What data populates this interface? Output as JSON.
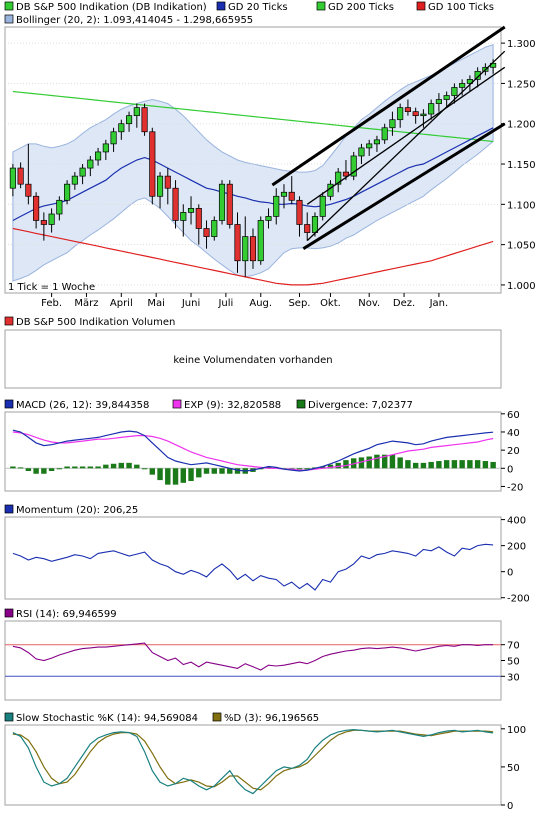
{
  "colors": {
    "candle_up": "#33cc33",
    "candle_down": "#e03030",
    "gd20": "#1a2fb0",
    "gd200": "#33cc33",
    "gd100": "#e02020",
    "bollinger_fill": "#dde7f6",
    "bollinger_line": "#9ab4de",
    "trend": "#000000",
    "macd": "#1a2fb0",
    "exp": "#ee33ee",
    "divergence": "#1a7a1a",
    "momentum": "#1a2fb0",
    "rsi": "#880088",
    "rsi_upper": "#e06060",
    "rsi_lower": "#4050c0",
    "stoch_k": "#1a8080",
    "stoch_d": "#807010"
  },
  "main": {
    "legend": [
      {
        "label": "DB S&P 500 Indikation (DB Indikation)",
        "color": "#33cc33"
      },
      {
        "label": "GD 20 Ticks",
        "color": "#1a2fb0"
      },
      {
        "label": "GD 200 Ticks",
        "color": "#33cc33"
      },
      {
        "label": "GD 100 Ticks",
        "color": "#e02020"
      }
    ],
    "legend2": {
      "label": "Bollinger (20, 2): 1.093,414045 - 1.298,665955",
      "color": "#9ab4de"
    },
    "tick_note": "1 Tick = 1 Woche"
  },
  "chart_data": [
    {
      "type": "candlestick",
      "title": "DB S&P 500 Indikation (DB Indikation)",
      "yticks": [
        "1.000",
        "1.050",
        "1.100",
        "1.150",
        "1.200",
        "1.250",
        "1.300"
      ],
      "ylim": [
        990,
        1320
      ],
      "months": [
        {
          "label": "Feb.",
          "x": 5
        },
        {
          "label": "März",
          "x": 9.5
        },
        {
          "label": "April",
          "x": 14
        },
        {
          "label": "Mai",
          "x": 18.5
        },
        {
          "label": "Juni",
          "x": 23
        },
        {
          "label": "Juli",
          "x": 27.5
        },
        {
          "label": "Aug.",
          "x": 32
        },
        {
          "label": "Sep.",
          "x": 37
        },
        {
          "label": "Okt.",
          "x": 41
        },
        {
          "label": "Nov.",
          "x": 46
        },
        {
          "label": "Dez.",
          "x": 50.5
        },
        {
          "label": "Jan.",
          "x": 55
        }
      ],
      "candles": [
        [
          1120,
          1150,
          1110,
          1145
        ],
        [
          1145,
          1152,
          1120,
          1125
        ],
        [
          1125,
          1175,
          1100,
          1110
        ],
        [
          1110,
          1115,
          1070,
          1080
        ],
        [
          1080,
          1090,
          1055,
          1075
        ],
        [
          1075,
          1095,
          1065,
          1088
        ],
        [
          1088,
          1110,
          1080,
          1105
        ],
        [
          1105,
          1130,
          1100,
          1125
        ],
        [
          1125,
          1140,
          1118,
          1135
        ],
        [
          1135,
          1150,
          1125,
          1145
        ],
        [
          1145,
          1160,
          1135,
          1155
        ],
        [
          1155,
          1170,
          1148,
          1165
        ],
        [
          1165,
          1180,
          1155,
          1175
        ],
        [
          1175,
          1195,
          1165,
          1190
        ],
        [
          1190,
          1205,
          1180,
          1200
        ],
        [
          1200,
          1215,
          1190,
          1210
        ],
        [
          1210,
          1225,
          1195,
          1220
        ],
        [
          1220,
          1225,
          1185,
          1190
        ],
        [
          1190,
          1195,
          1100,
          1110
        ],
        [
          1110,
          1140,
          1095,
          1135
        ],
        [
          1135,
          1145,
          1100,
          1120
        ],
        [
          1120,
          1130,
          1070,
          1080
        ],
        [
          1080,
          1100,
          1060,
          1090
        ],
        [
          1090,
          1110,
          1075,
          1095
        ],
        [
          1095,
          1100,
          1050,
          1070
        ],
        [
          1070,
          1080,
          1045,
          1060
        ],
        [
          1060,
          1085,
          1055,
          1080
        ],
        [
          1080,
          1130,
          1075,
          1125
        ],
        [
          1125,
          1130,
          1070,
          1075
        ],
        [
          1075,
          1090,
          1015,
          1030
        ],
        [
          1030,
          1085,
          1010,
          1060
        ],
        [
          1060,
          1070,
          1020,
          1030
        ],
        [
          1030,
          1085,
          1025,
          1080
        ],
        [
          1080,
          1095,
          1070,
          1085
        ],
        [
          1085,
          1120,
          1075,
          1110
        ],
        [
          1110,
          1125,
          1095,
          1115
        ],
        [
          1115,
          1135,
          1100,
          1105
        ],
        [
          1105,
          1110,
          1060,
          1075
        ],
        [
          1075,
          1090,
          1055,
          1065
        ],
        [
          1065,
          1090,
          1060,
          1085
        ],
        [
          1085,
          1115,
          1080,
          1110
        ],
        [
          1110,
          1130,
          1105,
          1125
        ],
        [
          1125,
          1145,
          1115,
          1140
        ],
        [
          1140,
          1155,
          1130,
          1135
        ],
        [
          1135,
          1165,
          1130,
          1160
        ],
        [
          1160,
          1175,
          1150,
          1170
        ],
        [
          1170,
          1180,
          1160,
          1175
        ],
        [
          1175,
          1185,
          1165,
          1180
        ],
        [
          1180,
          1200,
          1175,
          1195
        ],
        [
          1195,
          1215,
          1185,
          1205
        ],
        [
          1205,
          1225,
          1195,
          1220
        ],
        [
          1220,
          1230,
          1210,
          1215
        ],
        [
          1215,
          1220,
          1200,
          1210
        ],
        [
          1210,
          1218,
          1195,
          1212
        ],
        [
          1212,
          1230,
          1205,
          1225
        ],
        [
          1225,
          1238,
          1215,
          1230
        ],
        [
          1230,
          1240,
          1220,
          1235
        ],
        [
          1235,
          1250,
          1225,
          1245
        ],
        [
          1245,
          1255,
          1235,
          1250
        ],
        [
          1250,
          1260,
          1240,
          1255
        ],
        [
          1255,
          1270,
          1245,
          1265
        ],
        [
          1265,
          1275,
          1260,
          1270
        ],
        [
          1270,
          1280,
          1262,
          1275
        ]
      ],
      "gd20": [
        1080,
        1085,
        1090,
        1095,
        1098,
        1100,
        1102,
        1105,
        1110,
        1115,
        1120,
        1125,
        1130,
        1138,
        1145,
        1150,
        1155,
        1158,
        1155,
        1150,
        1145,
        1140,
        1135,
        1130,
        1125,
        1120,
        1118,
        1115,
        1113,
        1110,
        1108,
        1105,
        1103,
        1102,
        1100,
        1100,
        1101,
        1100,
        1098,
        1097,
        1098,
        1100,
        1103,
        1106,
        1110,
        1115,
        1120,
        1125,
        1130,
        1135,
        1140,
        1145,
        1148,
        1150,
        1155,
        1160,
        1165,
        1170,
        1175,
        1180,
        1185,
        1190,
        1195
      ],
      "gd200": [
        1240,
        1239,
        1238,
        1237,
        1236,
        1235,
        1234,
        1233,
        1232,
        1231,
        1230,
        1229,
        1228,
        1227,
        1226,
        1225,
        1224,
        1223,
        1222,
        1221,
        1220,
        1219,
        1218,
        1217,
        1216,
        1215,
        1214,
        1213,
        1212,
        1211,
        1210,
        1209,
        1208,
        1207,
        1206,
        1205,
        1204,
        1203,
        1202,
        1201,
        1200,
        1199,
        1198,
        1197,
        1196,
        1195,
        1194,
        1193,
        1192,
        1191,
        1190,
        1189,
        1188,
        1187,
        1186,
        1185,
        1184,
        1183,
        1182,
        1181,
        1180,
        1179,
        1178
      ],
      "gd100": [
        1070,
        1068,
        1066,
        1064,
        1062,
        1060,
        1058,
        1056,
        1054,
        1052,
        1050,
        1048,
        1046,
        1044,
        1042,
        1040,
        1038,
        1036,
        1034,
        1032,
        1030,
        1028,
        1026,
        1024,
        1022,
        1020,
        1018,
        1016,
        1014,
        1012,
        1010,
        1008,
        1006,
        1004,
        1002,
        1001,
        1000,
        1000,
        1000,
        1001,
        1002,
        1004,
        1006,
        1008,
        1010,
        1012,
        1014,
        1016,
        1018,
        1020,
        1022,
        1024,
        1026,
        1028,
        1030,
        1033,
        1036,
        1039,
        1042,
        1045,
        1048,
        1051,
        1054
      ],
      "boll_upper": [
        1165,
        1170,
        1175,
        1175,
        1172,
        1170,
        1172,
        1175,
        1180,
        1188,
        1195,
        1200,
        1205,
        1212,
        1218,
        1222,
        1225,
        1228,
        1230,
        1228,
        1225,
        1218,
        1210,
        1200,
        1190,
        1180,
        1172,
        1165,
        1160,
        1155,
        1152,
        1150,
        1148,
        1146,
        1144,
        1142,
        1141,
        1140,
        1140,
        1142,
        1148,
        1160,
        1172,
        1185,
        1195,
        1205,
        1212,
        1220,
        1228,
        1235,
        1242,
        1248,
        1252,
        1256,
        1260,
        1265,
        1270,
        1275,
        1280,
        1285,
        1290,
        1295,
        1298
      ],
      "boll_lower": [
        1005,
        1008,
        1012,
        1018,
        1025,
        1030,
        1035,
        1040,
        1048,
        1055,
        1062,
        1068,
        1075,
        1082,
        1090,
        1098,
        1105,
        1108,
        1102,
        1095,
        1085,
        1075,
        1065,
        1055,
        1048,
        1040,
        1032,
        1025,
        1018,
        1012,
        1010,
        1012,
        1015,
        1020,
        1030,
        1040,
        1045,
        1046,
        1046,
        1045,
        1046,
        1048,
        1052,
        1058,
        1062,
        1068,
        1074,
        1080,
        1085,
        1090,
        1095,
        1100,
        1105,
        1110,
        1118,
        1125,
        1132,
        1140,
        1148,
        1155,
        1162,
        1170,
        1178
      ],
      "trendlines": [
        [
          [
            33.5,
            1124
          ],
          [
            63.5,
            1320
          ]
        ],
        [
          [
            37.5,
            1045
          ],
          [
            63.5,
            1200
          ]
        ],
        [
          [
            38,
            1100
          ],
          [
            63.5,
            1270
          ]
        ],
        [
          [
            38,
            1055
          ],
          [
            63.5,
            1290
          ]
        ]
      ]
    },
    {
      "type": "text",
      "title": "DB S&P 500 Indikation Volumen",
      "message": "keine Volumendaten vorhanden"
    },
    {
      "type": "line+bar",
      "legend": [
        {
          "label": "MACD (26, 12): 39,844358",
          "color": "#1a2fb0"
        },
        {
          "label": "EXP (9): 32,820588",
          "color": "#ee33ee"
        },
        {
          "label": "Divergence: 7,02377",
          "color": "#1a7a1a"
        }
      ],
      "yticks": [
        "60",
        "40",
        "20",
        "0",
        "-20"
      ],
      "ylim": [
        -25,
        62
      ],
      "macd": [
        42,
        40,
        34,
        28,
        25,
        26,
        28,
        30,
        31,
        32,
        33,
        34,
        36,
        38,
        40,
        41,
        40,
        36,
        28,
        20,
        12,
        8,
        6,
        4,
        5,
        6,
        4,
        2,
        0,
        -2,
        -3,
        -2,
        0,
        2,
        1,
        -1,
        -2,
        -3,
        -2,
        0,
        2,
        5,
        8,
        12,
        16,
        19,
        22,
        26,
        28,
        30,
        29,
        28,
        26,
        27,
        30,
        32,
        34,
        35,
        36,
        37,
        38,
        39,
        39.8
      ],
      "exp": [
        40,
        39,
        37,
        34,
        31,
        29,
        28,
        28,
        29,
        30,
        31,
        32,
        32,
        33,
        34,
        35,
        36,
        36,
        35,
        33,
        30,
        26,
        22,
        18,
        15,
        12,
        10,
        8,
        6,
        4,
        3,
        2,
        1,
        0,
        0,
        -1,
        -1,
        -2,
        -2,
        -1,
        0,
        1,
        2,
        3,
        5,
        7,
        9,
        11,
        13,
        15,
        17,
        19,
        20,
        21,
        23,
        24,
        25,
        26,
        27,
        28,
        29,
        31,
        32.8
      ],
      "divergence": [
        2,
        1,
        -3,
        -6,
        -6,
        -3,
        0,
        2,
        2,
        2,
        2,
        2,
        4,
        5,
        6,
        6,
        4,
        0,
        -7,
        -13,
        -18,
        -18,
        -16,
        -14,
        -10,
        -6,
        -6,
        -6,
        -6,
        -6,
        -6,
        -4,
        -1,
        2,
        1,
        0,
        -1,
        -1,
        0,
        1,
        2,
        4,
        6,
        9,
        11,
        12,
        13,
        15,
        15,
        15,
        12,
        9,
        6,
        6,
        7,
        8,
        9,
        9,
        9,
        9,
        9,
        8,
        7
      ]
    },
    {
      "type": "line",
      "legend": [
        {
          "label": "Momentum (20): 206,25",
          "color": "#1a2fb0"
        }
      ],
      "yticks": [
        "400",
        "200",
        "0",
        "-200"
      ],
      "ylim": [
        -210,
        420
      ],
      "values": [
        140,
        120,
        90,
        110,
        100,
        80,
        95,
        110,
        130,
        120,
        100,
        140,
        150,
        160,
        140,
        120,
        135,
        150,
        90,
        60,
        40,
        0,
        -20,
        10,
        -10,
        -40,
        20,
        60,
        10,
        -60,
        -20,
        -70,
        -30,
        -50,
        -60,
        -110,
        -80,
        -130,
        -90,
        -140,
        -60,
        -80,
        0,
        20,
        60,
        120,
        100,
        130,
        140,
        160,
        150,
        140,
        120,
        170,
        160,
        190,
        150,
        120,
        180,
        170,
        200,
        210,
        206
      ]
    },
    {
      "type": "line",
      "legend": [
        {
          "label": "RSI (14): 69,946599",
          "color": "#880088"
        }
      ],
      "yticks": [
        "70",
        "50",
        "30"
      ],
      "ylim": [
        0,
        100
      ],
      "hlines": [
        70,
        30
      ],
      "values": [
        68,
        66,
        60,
        52,
        50,
        53,
        57,
        60,
        63,
        65,
        66,
        67,
        67,
        68,
        69,
        70,
        71,
        72,
        60,
        55,
        50,
        53,
        45,
        48,
        42,
        48,
        46,
        44,
        42,
        40,
        46,
        42,
        38,
        44,
        43,
        44,
        46,
        48,
        46,
        50,
        55,
        58,
        60,
        62,
        63,
        65,
        66,
        65,
        66,
        67,
        66,
        64,
        62,
        64,
        66,
        68,
        69,
        68,
        70,
        70,
        69,
        70,
        70
      ]
    },
    {
      "type": "line",
      "legend": [
        {
          "label": "Slow Stochastic %K (14): 94,569084",
          "color": "#1a8080"
        },
        {
          "label": "%D (3): 96,196565",
          "color": "#807010"
        }
      ],
      "yticks": [
        "100",
        "50",
        "0"
      ],
      "ylim": [
        0,
        105
      ],
      "k": [
        95,
        90,
        75,
        50,
        30,
        25,
        28,
        35,
        50,
        65,
        80,
        88,
        92,
        95,
        96,
        95,
        90,
        70,
        45,
        30,
        25,
        28,
        35,
        32,
        25,
        20,
        25,
        35,
        45,
        30,
        20,
        15,
        25,
        35,
        45,
        50,
        48,
        52,
        60,
        75,
        85,
        92,
        96,
        98,
        99,
        98,
        97,
        96,
        97,
        98,
        96,
        94,
        92,
        90,
        92,
        95,
        97,
        98,
        96,
        97,
        98,
        96,
        94.6
      ],
      "d": [
        93,
        92,
        85,
        70,
        50,
        35,
        28,
        30,
        40,
        55,
        70,
        82,
        89,
        93,
        95,
        95,
        93,
        84,
        68,
        50,
        35,
        28,
        30,
        33,
        30,
        25,
        24,
        30,
        38,
        38,
        30,
        22,
        20,
        28,
        38,
        45,
        48,
        50,
        55,
        65,
        75,
        85,
        92,
        96,
        98,
        98,
        97,
        97,
        97,
        97,
        97,
        95,
        93,
        92,
        91,
        93,
        95,
        97,
        97,
        97,
        97,
        97,
        96.2
      ]
    }
  ]
}
